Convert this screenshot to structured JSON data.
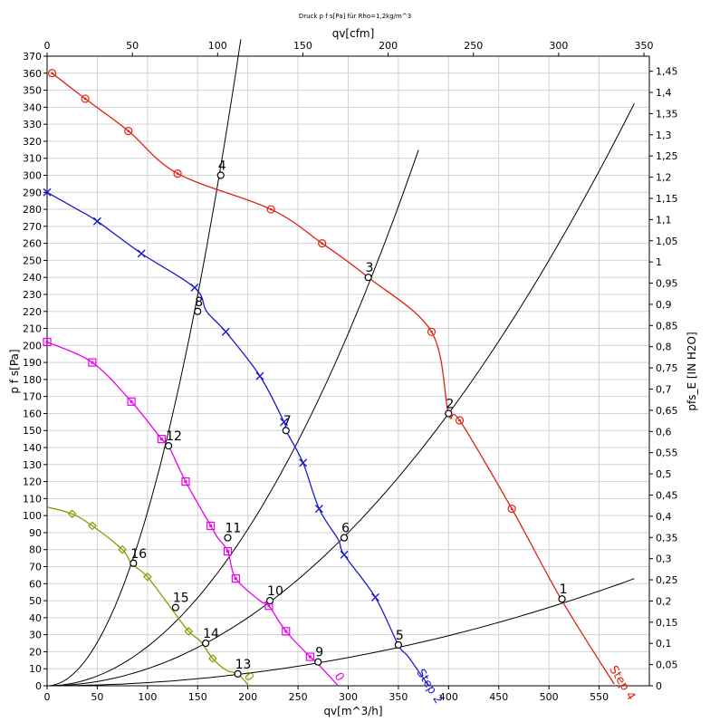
{
  "chart_data": {
    "type": "line",
    "title": "Druck p f s[Pa] für Rho=1,2kg/m^3",
    "xlabel": "qv[m^3/h]",
    "x2label": "qv[cfm]",
    "ylabel": "p f s[Pa]",
    "y2label": "pfs_E [IN H2O]",
    "xlim": [
      0,
      600
    ],
    "ylim": [
      0,
      370
    ],
    "x_ticks": [
      0,
      50,
      100,
      150,
      200,
      250,
      300,
      350,
      400,
      450,
      500,
      550
    ],
    "x2_ticks": [
      0,
      50,
      100,
      150,
      200,
      250,
      300,
      350
    ],
    "x2_per_x": 0.5886,
    "y_ticks": [
      0,
      10,
      20,
      30,
      40,
      50,
      60,
      70,
      80,
      90,
      100,
      110,
      120,
      130,
      140,
      150,
      160,
      170,
      180,
      190,
      200,
      210,
      220,
      230,
      240,
      250,
      260,
      270,
      280,
      290,
      300,
      310,
      320,
      330,
      340,
      350,
      360,
      370
    ],
    "y2_ticks": [
      "0",
      "0,05",
      "0,1",
      "0,15",
      "0,2",
      "0,25",
      "0,3",
      "0,35",
      "0,4",
      "0,45",
      "0,5",
      "0,55",
      "0,6",
      "0,65",
      "0,7",
      "0,75",
      "0,8",
      "0,85",
      "0,9",
      "0,95",
      "1",
      "1,05",
      "1,1",
      "1,15",
      "1,2",
      "1,25",
      "1,3",
      "1,35",
      "1,4",
      "1,45"
    ],
    "y2_per_y": 0.004015,
    "grid": true,
    "fan_curves": [
      {
        "name": "Step 4",
        "color": "#e02010",
        "marker": "circle",
        "points": [
          [
            5,
            360
          ],
          [
            38,
            345
          ],
          [
            81,
            326
          ],
          [
            130,
            301
          ],
          [
            223,
            280
          ],
          [
            274,
            260
          ],
          [
            320,
            240
          ],
          [
            383,
            208
          ],
          [
            400,
            160
          ],
          [
            411,
            156
          ],
          [
            463,
            104
          ],
          [
            513,
            50
          ],
          [
            565,
            1
          ]
        ],
        "markers": [
          [
            5,
            360
          ],
          [
            38,
            345
          ],
          [
            81,
            326
          ],
          [
            130,
            301
          ],
          [
            223,
            280
          ],
          [
            274,
            260
          ],
          [
            383,
            208
          ],
          [
            411,
            156
          ],
          [
            463,
            104
          ]
        ],
        "label": "Step 4",
        "label_at": [
          560,
          10
        ]
      },
      {
        "name": "Step 2",
        "color": "#1a1acc",
        "marker": "x",
        "points": [
          [
            0,
            290
          ],
          [
            30,
            280
          ],
          [
            50,
            273
          ],
          [
            94,
            254
          ],
          [
            147,
            234
          ],
          [
            159,
            220
          ],
          [
            178,
            208
          ],
          [
            212,
            182
          ],
          [
            236,
            155
          ],
          [
            238,
            150
          ],
          [
            255,
            131
          ],
          [
            271,
            104
          ],
          [
            290,
            86
          ],
          [
            296,
            77
          ],
          [
            327,
            52
          ],
          [
            350,
            24
          ],
          [
            360,
            17
          ],
          [
            380,
            0
          ]
        ],
        "markers": [
          [
            0,
            290
          ],
          [
            50,
            273
          ],
          [
            94,
            254
          ],
          [
            147,
            234
          ],
          [
            178,
            208
          ],
          [
            212,
            182
          ],
          [
            236,
            155
          ],
          [
            255,
            131
          ],
          [
            271,
            104
          ],
          [
            296,
            77
          ],
          [
            327,
            52
          ]
        ],
        "label": "Step 2",
        "label_at": [
          368,
          8
        ]
      },
      {
        "name": "Step 0 (magenta)",
        "color": "#ee00ee",
        "marker": "square",
        "points": [
          [
            0,
            202
          ],
          [
            45,
            190
          ],
          [
            84,
            167
          ],
          [
            114,
            145
          ],
          [
            121,
            141
          ],
          [
            138,
            120
          ],
          [
            163,
            94
          ],
          [
            170,
            87
          ],
          [
            180,
            79
          ],
          [
            188,
            63
          ],
          [
            212,
            50
          ],
          [
            221,
            47
          ],
          [
            238,
            32
          ],
          [
            262,
            17
          ],
          [
            268,
            14
          ],
          [
            290,
            0
          ]
        ],
        "markers": [
          [
            0,
            202
          ],
          [
            45,
            190
          ],
          [
            84,
            167
          ],
          [
            114,
            145
          ],
          [
            138,
            120
          ],
          [
            163,
            94
          ],
          [
            180,
            79
          ],
          [
            188,
            63
          ],
          [
            221,
            47
          ],
          [
            238,
            32
          ],
          [
            262,
            17
          ]
        ],
        "label": "0",
        "label_at": [
          286,
          6
        ]
      },
      {
        "name": "Step 0 (olive)",
        "color": "#8a9a00",
        "marker": "diamond",
        "points": [
          [
            0,
            105
          ],
          [
            25,
            101
          ],
          [
            45,
            94
          ],
          [
            75,
            80
          ],
          [
            84,
            72
          ],
          [
            100,
            64
          ],
          [
            123,
            46
          ],
          [
            141,
            32
          ],
          [
            153,
            26
          ],
          [
            165,
            16
          ],
          [
            179,
            9
          ],
          [
            190,
            7
          ],
          [
            201,
            0
          ]
        ],
        "markers": [
          [
            25,
            101
          ],
          [
            45,
            94
          ],
          [
            75,
            80
          ],
          [
            100,
            64
          ],
          [
            141,
            32
          ],
          [
            165,
            16
          ]
        ],
        "label": "0",
        "label_at": [
          196,
          6
        ]
      }
    ],
    "system_curves": [
      {
        "name": "curve-1-5-9-13",
        "k": 0.000184,
        "x_max": 585
      },
      {
        "name": "curve-2-6-10-14",
        "k": 0.001,
        "x_max": 585
      },
      {
        "name": "curve-3-7-11-15",
        "k": 0.0023,
        "x_max": 370
      },
      {
        "name": "curve-4-8-12-16",
        "k": 0.0102,
        "x_max": 193
      }
    ],
    "operating_points": [
      {
        "label": "1",
        "x": 513,
        "y": 51
      },
      {
        "label": "2",
        "x": 400,
        "y": 160
      },
      {
        "label": "3",
        "x": 320,
        "y": 240
      },
      {
        "label": "4",
        "x": 173,
        "y": 300
      },
      {
        "label": "5",
        "x": 350,
        "y": 24
      },
      {
        "label": "6",
        "x": 296,
        "y": 87
      },
      {
        "label": "7",
        "x": 238,
        "y": 150
      },
      {
        "label": "8",
        "x": 150,
        "y": 220
      },
      {
        "label": "9",
        "x": 270,
        "y": 14
      },
      {
        "label": "10",
        "x": 222,
        "y": 50
      },
      {
        "label": "11",
        "x": 180,
        "y": 87
      },
      {
        "label": "12",
        "x": 121,
        "y": 141
      },
      {
        "label": "13",
        "x": 190,
        "y": 7
      },
      {
        "label": "14",
        "x": 158,
        "y": 25
      },
      {
        "label": "15",
        "x": 128,
        "y": 46
      },
      {
        "label": "16",
        "x": 86,
        "y": 72
      }
    ]
  }
}
